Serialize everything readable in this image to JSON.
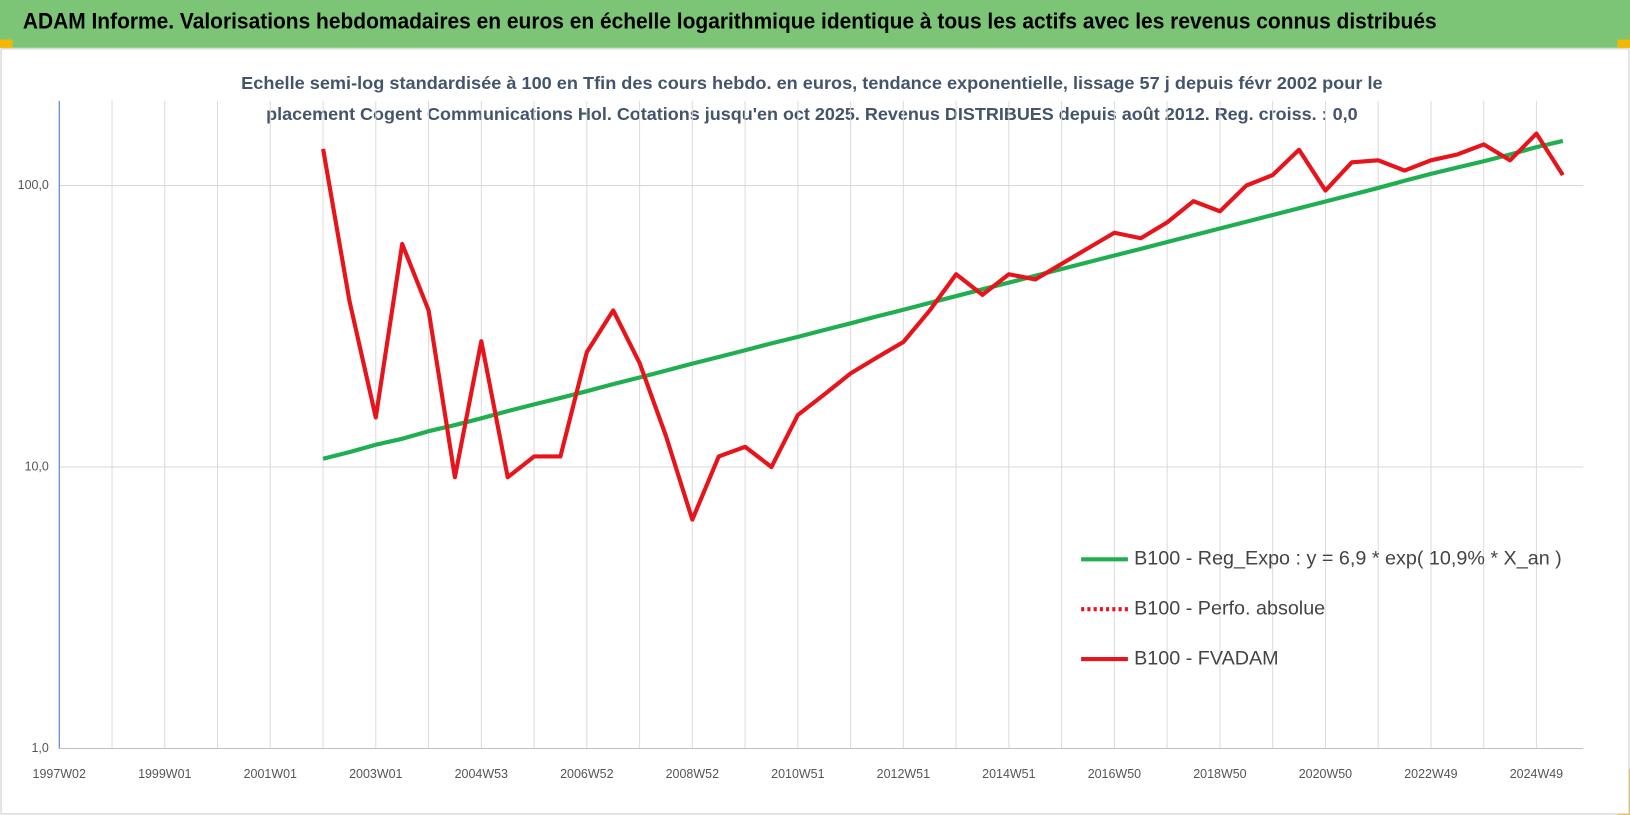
{
  "header": {
    "title": "ADAM Informe. Valorisations hebdomadaires en euros en échelle logarithmique identique à tous les actifs avec les revenus connus distribués"
  },
  "chart_data": {
    "type": "line",
    "subtitle": [
      "Echelle semi-log standardisée à 100 en Tfin des cours hebdo. en euros, tendance exponentielle, lissage 57 j depuis févr 2002 pour le",
      "placement Cogent Communications Hol. Cotations jusqu'en oct 2025. Revenus DISTRIBUES depuis août 2012. Reg. croiss. : 0,0"
    ],
    "categories": [
      "1997W02",
      null,
      null,
      null,
      "1999W01",
      null,
      null,
      null,
      "2001W01",
      null,
      null,
      null,
      "2003W01",
      null,
      null,
      null,
      "2004W53",
      null,
      null,
      null,
      "2006W52",
      null,
      null,
      null,
      "2008W52",
      null,
      null,
      null,
      "2010W51",
      null,
      null,
      null,
      "2012W51",
      null,
      null,
      null,
      "2014W51",
      null,
      null,
      null,
      "2016W50",
      null,
      null,
      null,
      "2018W50",
      null,
      null,
      null,
      "2020W50",
      null,
      null,
      null,
      "2022W49",
      null,
      null,
      null,
      "2024W49",
      null
    ],
    "log_scale": true,
    "grid": true,
    "ylim": [
      1,
      200
    ],
    "yticks": [
      {
        "value": 1,
        "label": "1,0"
      },
      {
        "value": 10,
        "label": "10,0"
      },
      {
        "value": 100,
        "label": "100,0"
      }
    ],
    "series": [
      {
        "name": "B100 - Reg_Expo : y = 6,9 * exp( 10,9% *  X_an )",
        "color": "#1fae50",
        "line_style": "solid",
        "values": [
          null,
          null,
          null,
          null,
          null,
          null,
          null,
          null,
          null,
          null,
          10.7,
          11.3,
          12.0,
          12.6,
          13.4,
          14.1,
          14.9,
          15.8,
          16.7,
          17.6,
          18.6,
          19.7,
          20.8,
          22.0,
          23.3,
          24.6,
          26.0,
          27.5,
          29.0,
          30.7,
          32.4,
          34.3,
          36.2,
          38.3,
          40.5,
          42.8,
          45.2,
          47.8,
          50.5,
          53.4,
          56.4,
          59.6,
          63.0,
          66.6,
          70.4,
          74.4,
          78.6,
          83.1,
          87.8,
          92.8,
          98.1,
          104,
          110,
          116,
          122,
          129,
          137,
          144
        ]
      },
      {
        "name": "B100 - Perfo. absolue",
        "color": "#e8141b",
        "line_style": "dotted",
        "values": [
          null,
          null,
          null,
          null,
          null,
          null,
          null,
          null,
          null,
          null,
          null,
          null,
          null,
          null,
          null,
          null,
          null,
          null,
          null,
          null,
          null,
          null,
          null,
          null,
          null,
          null,
          null,
          null,
          null,
          null,
          null,
          null,
          null,
          null,
          null,
          null,
          null,
          null,
          null,
          null,
          null,
          null,
          null,
          null,
          null,
          null,
          null,
          null,
          null,
          null,
          null,
          null,
          null,
          null,
          null,
          null,
          null,
          null
        ]
      },
      {
        "name": "B100 - FVADAM",
        "color": "#e8141b",
        "line_style": "solid",
        "values": [
          null,
          null,
          null,
          null,
          null,
          null,
          null,
          null,
          null,
          null,
          135,
          39,
          15,
          62,
          36,
          9.2,
          28,
          9.2,
          10.9,
          10.9,
          25.6,
          36,
          23.4,
          12.9,
          6.5,
          10.9,
          11.8,
          10,
          15.3,
          18.1,
          21.5,
          24.5,
          27.8,
          36,
          48.4,
          40.9,
          48.4,
          46.4,
          52.7,
          59.9,
          68,
          65,
          74,
          88,
          81,
          100,
          109,
          134,
          96,
          121,
          123,
          113,
          123,
          129,
          140,
          123,
          153,
          109
        ]
      }
    ]
  }
}
